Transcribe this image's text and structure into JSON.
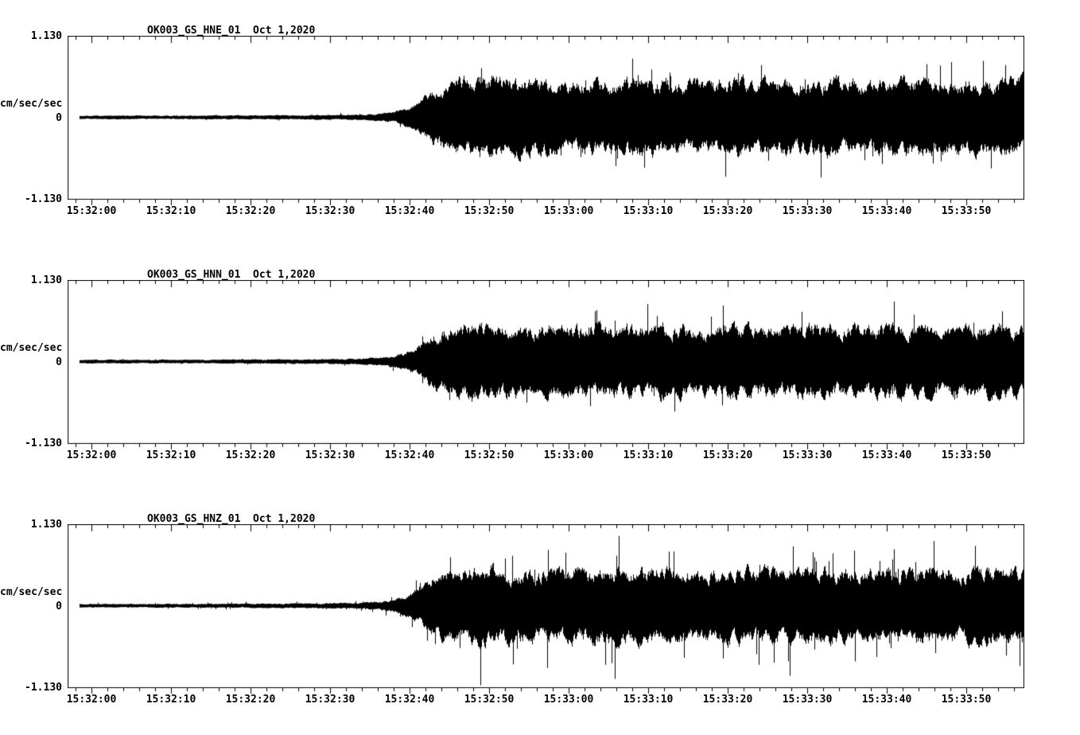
{
  "colors": {
    "background": "#ffffff",
    "trace": "#000000",
    "frame": "#000000",
    "text": "#000000"
  },
  "chart_data": [
    {
      "type": "line",
      "kind": "seismogram",
      "title": "OK003_GS_HNE_01  Oct 1,2020",
      "ylabel": "cm/sec/sec",
      "ylim": [
        -1.13,
        1.13
      ],
      "ytick_labels": [
        "1.130",
        "0",
        "-1.130"
      ],
      "xtick_labels": [
        "15:32:00",
        "15:32:10",
        "15:32:20",
        "15:32:30",
        "15:32:40",
        "15:32:50",
        "15:33:00",
        "15:33:10",
        "15:33:20",
        "15:33:30",
        "15:33:40",
        "15:33:50"
      ],
      "xtick_seconds": [
        0,
        10,
        20,
        30,
        40,
        50,
        60,
        70,
        80,
        90,
        100,
        110
      ],
      "x_range_seconds": [
        -3,
        117.3
      ],
      "grid": false,
      "legend": false,
      "envelope": [
        [
          -3,
          0.03
        ],
        [
          10,
          0.032
        ],
        [
          20,
          0.034
        ],
        [
          28,
          0.038
        ],
        [
          33,
          0.045
        ],
        [
          36,
          0.06
        ],
        [
          38,
          0.09
        ],
        [
          40,
          0.16
        ],
        [
          41.5,
          0.28
        ],
        [
          43,
          0.46
        ],
        [
          45,
          0.58
        ],
        [
          47,
          0.66
        ],
        [
          50,
          0.68
        ],
        [
          53,
          0.62
        ],
        [
          57,
          0.6
        ],
        [
          62,
          0.64
        ],
        [
          67,
          0.6
        ],
        [
          72,
          0.63
        ],
        [
          77,
          0.59
        ],
        [
          82,
          0.63
        ],
        [
          87,
          0.61
        ],
        [
          92,
          0.64
        ],
        [
          97,
          0.6
        ],
        [
          102,
          0.63
        ],
        [
          107,
          0.6
        ],
        [
          112,
          0.63
        ],
        [
          117.3,
          0.62
        ]
      ],
      "noise_seed": 101,
      "spike_rate": 0.018,
      "spike_gain": 1.45
    },
    {
      "type": "line",
      "kind": "seismogram",
      "title": "OK003_GS_HNN_01  Oct 1,2020",
      "ylabel": "cm/sec/sec",
      "ylim": [
        -1.13,
        1.13
      ],
      "ytick_labels": [
        "1.130",
        "0",
        "-1.130"
      ],
      "xtick_labels": [
        "15:32:00",
        "15:32:10",
        "15:32:20",
        "15:32:30",
        "15:32:40",
        "15:32:50",
        "15:33:00",
        "15:33:10",
        "15:33:20",
        "15:33:30",
        "15:33:40",
        "15:33:50"
      ],
      "xtick_seconds": [
        0,
        10,
        20,
        30,
        40,
        50,
        60,
        70,
        80,
        90,
        100,
        110
      ],
      "x_range_seconds": [
        -3,
        117.3
      ],
      "grid": false,
      "legend": false,
      "envelope": [
        [
          -3,
          0.03
        ],
        [
          10,
          0.032
        ],
        [
          20,
          0.035
        ],
        [
          28,
          0.04
        ],
        [
          33,
          0.047
        ],
        [
          36,
          0.065
        ],
        [
          38,
          0.1
        ],
        [
          40,
          0.18
        ],
        [
          41.5,
          0.3
        ],
        [
          43,
          0.48
        ],
        [
          45,
          0.6
        ],
        [
          47,
          0.68
        ],
        [
          50,
          0.66
        ],
        [
          53,
          0.6
        ],
        [
          57,
          0.57
        ],
        [
          62,
          0.61
        ],
        [
          67,
          0.58
        ],
        [
          72,
          0.62
        ],
        [
          77,
          0.57
        ],
        [
          82,
          0.6
        ],
        [
          87,
          0.58
        ],
        [
          92,
          0.61
        ],
        [
          97,
          0.57
        ],
        [
          102,
          0.6
        ],
        [
          107,
          0.57
        ],
        [
          112,
          0.6
        ],
        [
          117.3,
          0.59
        ]
      ],
      "noise_seed": 202,
      "spike_rate": 0.02,
      "spike_gain": 1.5
    },
    {
      "type": "line",
      "kind": "seismogram",
      "title": "OK003_GS_HNZ_01  Oct 1,2020",
      "ylabel": "cm/sec/sec",
      "ylim": [
        -1.13,
        1.13
      ],
      "ytick_labels": [
        "1.130",
        "0",
        "-1.130"
      ],
      "xtick_labels": [
        "15:32:00",
        "15:32:10",
        "15:32:20",
        "15:32:30",
        "15:32:40",
        "15:32:50",
        "15:33:00",
        "15:33:10",
        "15:33:20",
        "15:33:30",
        "15:33:40",
        "15:33:50"
      ],
      "xtick_seconds": [
        0,
        10,
        20,
        30,
        40,
        50,
        60,
        70,
        80,
        90,
        100,
        110
      ],
      "x_range_seconds": [
        -3,
        117.3
      ],
      "grid": false,
      "legend": false,
      "envelope": [
        [
          -3,
          0.03
        ],
        [
          10,
          0.032
        ],
        [
          20,
          0.036
        ],
        [
          28,
          0.042
        ],
        [
          33,
          0.05
        ],
        [
          36,
          0.07
        ],
        [
          38,
          0.11
        ],
        [
          40,
          0.2
        ],
        [
          41.5,
          0.32
        ],
        [
          43,
          0.5
        ],
        [
          45,
          0.6
        ],
        [
          47,
          0.64
        ],
        [
          50,
          0.66
        ],
        [
          53,
          0.6
        ],
        [
          57,
          0.58
        ],
        [
          62,
          0.62
        ],
        [
          67,
          0.59
        ],
        [
          72,
          0.63
        ],
        [
          77,
          0.58
        ],
        [
          82,
          0.62
        ],
        [
          87,
          0.6
        ],
        [
          92,
          0.63
        ],
        [
          97,
          0.59
        ],
        [
          102,
          0.62
        ],
        [
          107,
          0.6
        ],
        [
          112,
          0.64
        ],
        [
          117.3,
          0.62
        ]
      ],
      "noise_seed": 303,
      "spike_rate": 0.035,
      "spike_gain": 1.65
    }
  ]
}
